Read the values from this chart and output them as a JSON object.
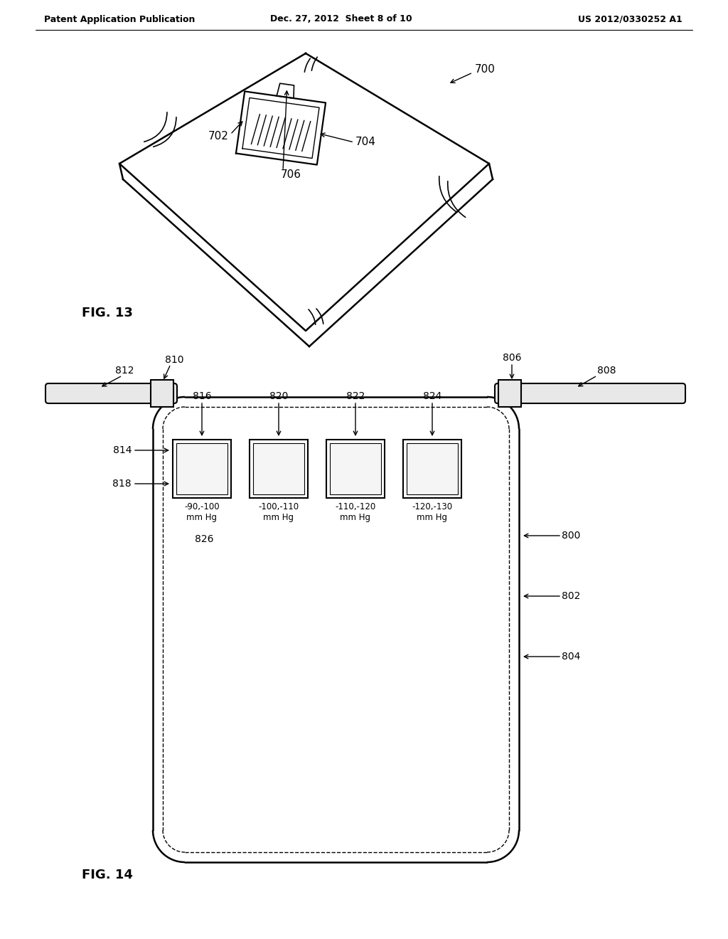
{
  "bg_color": "#ffffff",
  "header_left": "Patent Application Publication",
  "header_center": "Dec. 27, 2012  Sheet 8 of 10",
  "header_right": "US 2012/0330252 A1",
  "fig13_label": "FIG. 13",
  "fig14_label": "FIG. 14"
}
